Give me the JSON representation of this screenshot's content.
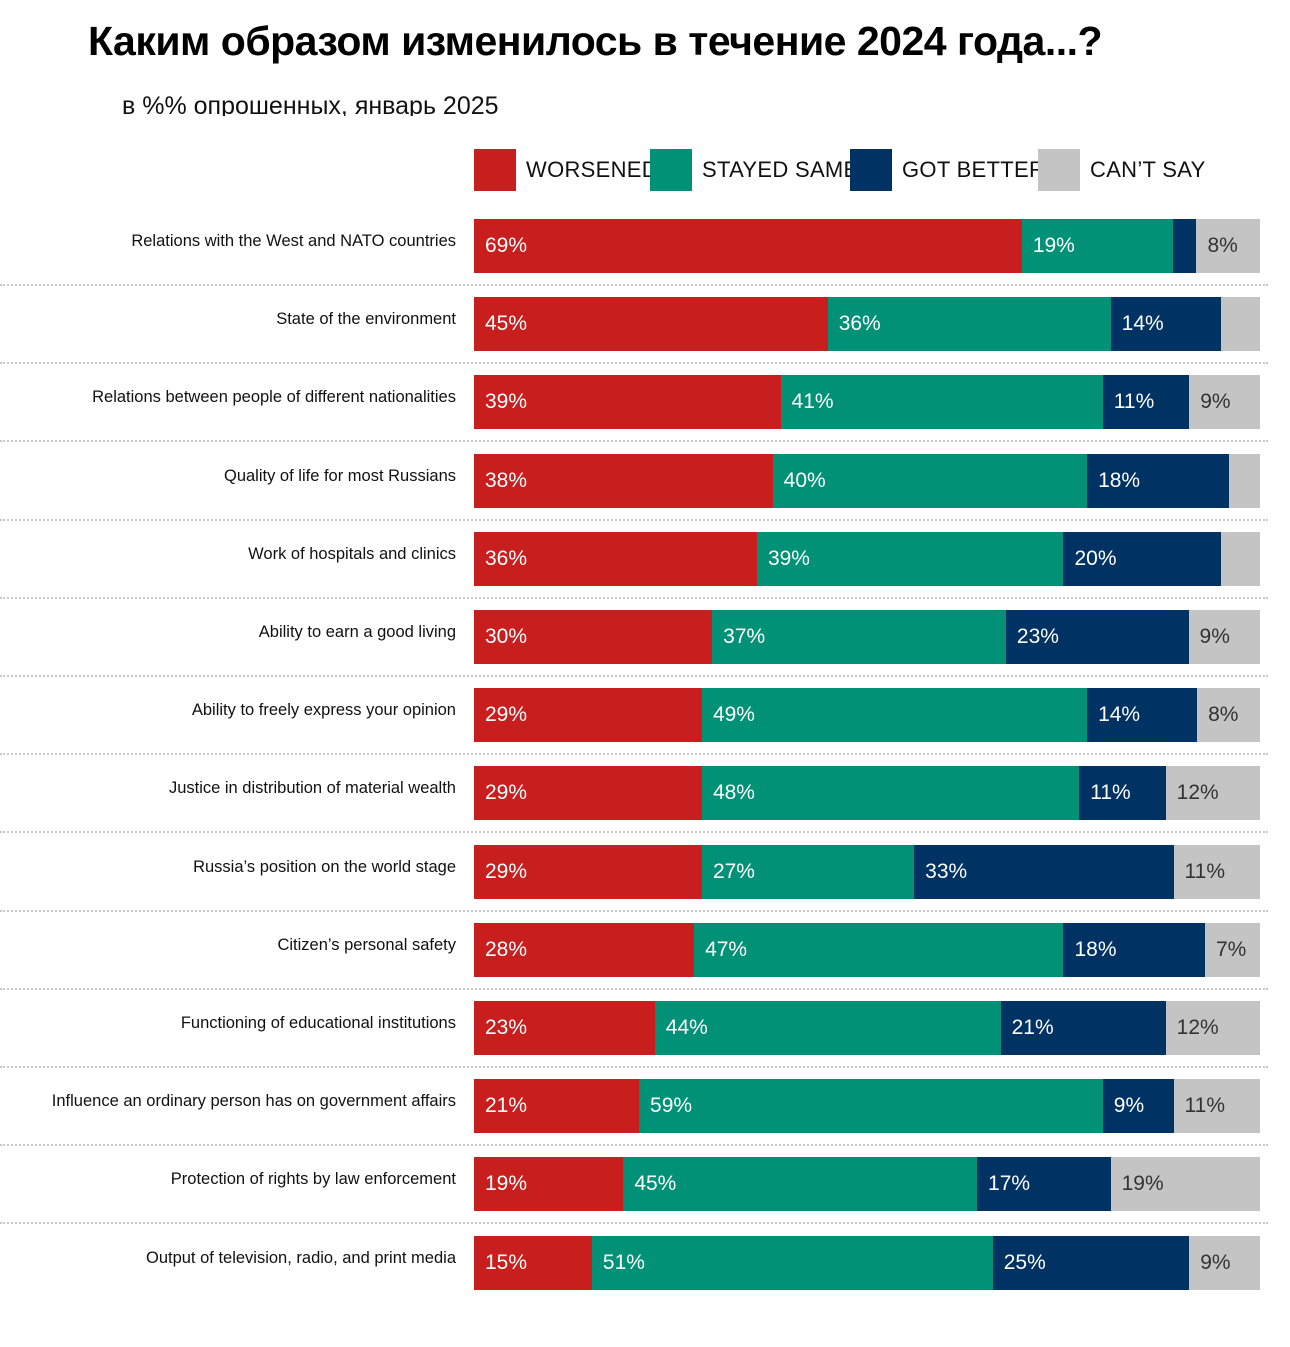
{
  "chart_data": {
    "type": "bar",
    "orientation": "horizontal",
    "stacked": true,
    "title": "Каким образом изменилось в течение 2024 года...?",
    "subtitle": "в %% опрошенных, январь 2025",
    "legend_position": "top",
    "xlim": [
      0,
      100
    ],
    "grid": false,
    "categories": [
      "Relations with the West and NATO countries",
      "State of the environment",
      "Relations between people of different nationalities",
      "Quality of life for most Russians",
      "Work of hospitals and clinics",
      "Ability to earn a good living",
      "Ability to freely express your opinion",
      "Justice in distribution of material wealth",
      "Russia’s position on the world stage",
      "Citizen’s personal safety",
      "Functioning of educational institutions",
      "Influence an ordinary person has on government affairs",
      "Protection of rights by law enforcement",
      "Output of television, radio, and print media"
    ],
    "series": [
      {
        "name": "WORSENED",
        "color": "#c81e1e",
        "label_color": "#ffffff",
        "values": [
          69,
          45,
          39,
          38,
          36,
          30,
          29,
          29,
          29,
          28,
          23,
          21,
          19,
          15
        ],
        "labeled": [
          true,
          true,
          true,
          true,
          true,
          true,
          true,
          true,
          true,
          true,
          true,
          true,
          true,
          true
        ]
      },
      {
        "name": "STAYED SAME",
        "color": "#009177",
        "label_color": "#ffffff",
        "values": [
          19,
          36,
          41,
          40,
          39,
          37,
          49,
          48,
          27,
          47,
          44,
          59,
          45,
          51
        ],
        "labeled": [
          true,
          true,
          true,
          true,
          true,
          true,
          true,
          true,
          true,
          true,
          true,
          true,
          true,
          true
        ]
      },
      {
        "name": "GOT BETTER",
        "color": "#003263",
        "label_color": "#ffffff",
        "values": [
          3,
          14,
          11,
          18,
          20,
          23,
          14,
          11,
          33,
          18,
          21,
          9,
          17,
          25
        ],
        "labeled": [
          false,
          true,
          true,
          true,
          true,
          true,
          true,
          true,
          true,
          true,
          true,
          true,
          true,
          true
        ]
      },
      {
        "name": "CAN’T SAY",
        "color": "#c4c4c4",
        "label_color": "#333333",
        "values": [
          8,
          5,
          9,
          4,
          5,
          9,
          8,
          12,
          11,
          7,
          12,
          11,
          19,
          9
        ],
        "labeled": [
          true,
          false,
          true,
          false,
          false,
          true,
          true,
          true,
          true,
          true,
          true,
          true,
          true,
          true
        ]
      }
    ]
  }
}
